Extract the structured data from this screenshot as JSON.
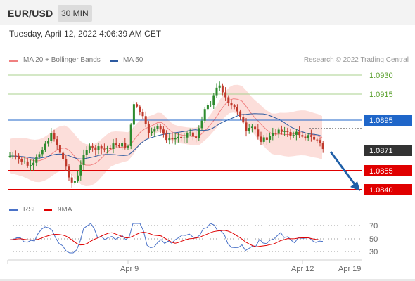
{
  "header": {
    "symbol": "EUR/USD",
    "timeframe": "30 MIN",
    "timestamp": "Tuesday, April 12, 2022 4:06:39 AM CET"
  },
  "legend": {
    "ma20_label": "MA 20 + Bollinger Bands",
    "ma20_color": "#f08080",
    "ma50_label": "MA 50",
    "ma50_color": "#2c5aa0",
    "copyright": "Research © 2022 Trading Central"
  },
  "price_levels": [
    {
      "value": "1.0930",
      "kind": "resistance",
      "color": "#5aa02c"
    },
    {
      "value": "1.0915",
      "kind": "resistance",
      "color": "#5aa02c"
    },
    {
      "value": "1.0895",
      "kind": "pivot",
      "color": "#1f66c9"
    },
    {
      "value": "1.0871",
      "kind": "last",
      "color": "#333333"
    },
    {
      "value": "1.0855",
      "kind": "support",
      "color": "#e00000"
    },
    {
      "value": "1.0840",
      "kind": "support",
      "color": "#e00000"
    }
  ],
  "rsi_panel": {
    "rsi_label": "RSI",
    "rsi_color": "#4a72c8",
    "ma_label": "9MA",
    "ma_color": "#e00000",
    "levels": [
      "70",
      "50",
      "30"
    ]
  },
  "x_axis": [
    "Apr 9",
    "Apr 12",
    "Apr 19"
  ]
}
